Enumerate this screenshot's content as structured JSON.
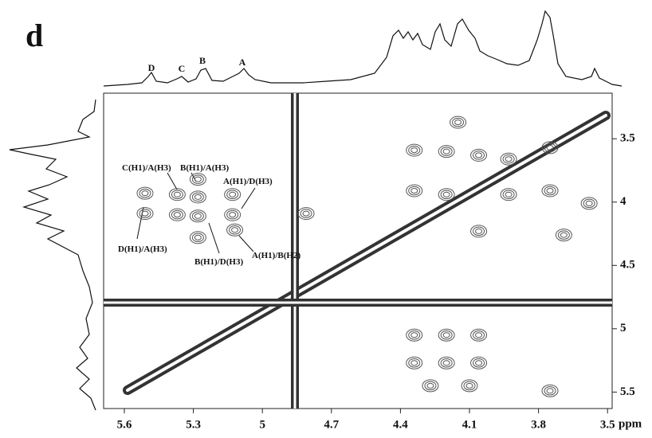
{
  "chart_data": {
    "type": "contour",
    "panel_label": "d",
    "x_label": "ppm",
    "xlim": [
      5.69,
      3.48
    ],
    "xticks": [
      5.6,
      5.3,
      5.0,
      4.7,
      4.4,
      4.1,
      3.8,
      3.5
    ],
    "ylim": [
      3.14,
      5.63
    ],
    "yticks": [
      3.5,
      4.0,
      4.5,
      5.0,
      5.5
    ],
    "color": "#555555",
    "peak_labels": [
      "D",
      "C",
      "B",
      "A"
    ],
    "annotations": [
      "C(H1)/A(H3)",
      "B(H1)/A(H3)",
      "A(H1)/D(H3)",
      "D(H1)/A(H3)",
      "B(H1)/D(H3)",
      "A(H1)/B(H2)"
    ],
    "peaks": {
      "x": [
        5.51,
        5.51,
        5.37,
        5.37,
        5.28,
        5.28,
        5.28,
        5.28,
        5.13,
        5.13,
        5.12,
        4.81,
        4.34,
        4.34,
        4.2,
        4.2,
        4.06,
        4.06,
        3.93,
        3.93,
        3.75,
        3.75,
        4.15,
        3.58,
        3.69,
        4.34,
        4.2,
        4.06,
        4.34,
        4.2,
        4.06,
        4.27,
        4.1,
        3.75
      ],
      "y": [
        3.93,
        4.09,
        3.94,
        4.1,
        3.82,
        3.96,
        4.11,
        4.28,
        3.94,
        4.1,
        4.22,
        4.09,
        3.59,
        3.91,
        3.6,
        3.94,
        3.63,
        4.23,
        3.66,
        3.94,
        3.57,
        3.91,
        3.37,
        4.01,
        4.26,
        5.05,
        5.05,
        5.05,
        5.27,
        5.27,
        5.27,
        5.45,
        5.45,
        5.49
      ]
    }
  }
}
